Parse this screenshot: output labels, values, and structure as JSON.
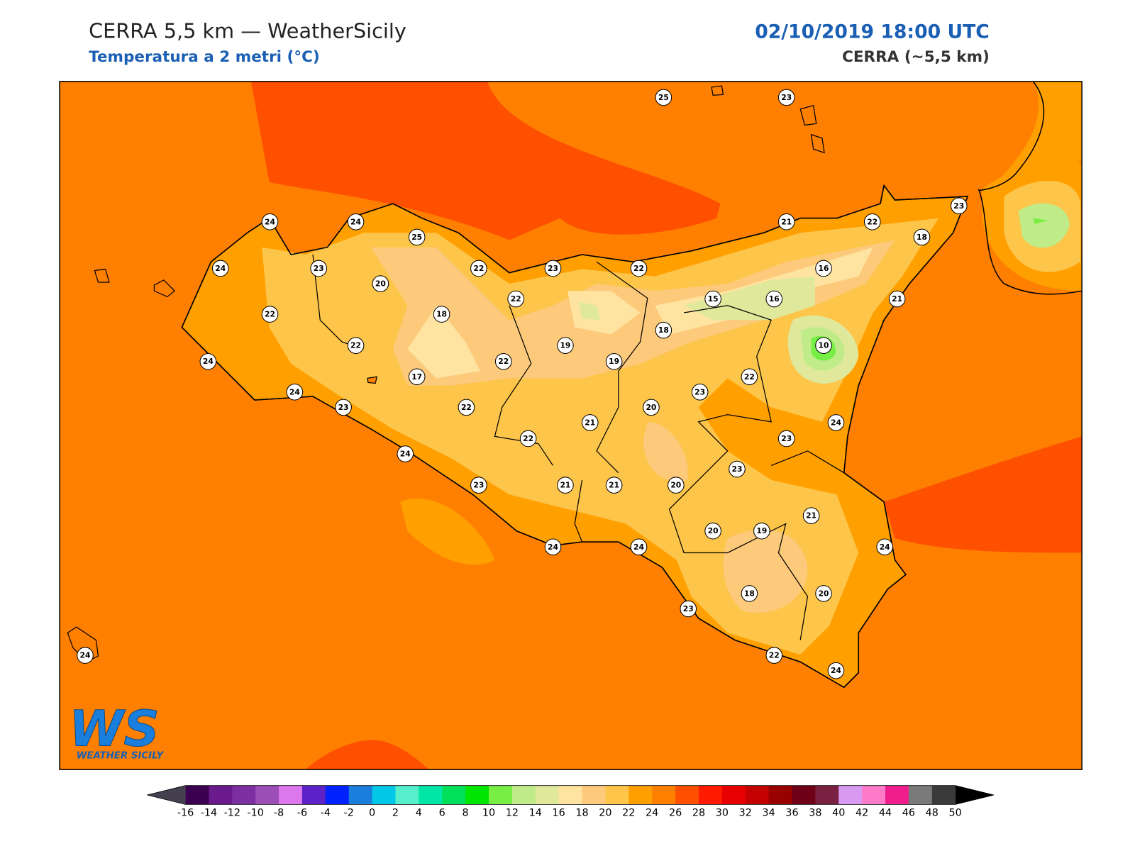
{
  "header": {
    "title": "CERRA 5,5 km — WeatherSicily",
    "subtitle": "Temperatura a 2 metri (°C)",
    "datetime": "02/10/2019 18:00 UTC",
    "model": "CERRA (~5,5 km)"
  },
  "logo": {
    "mark": "WS",
    "name": "WEATHER SICILY"
  },
  "stations": [
    25,
    23,
    24,
    24,
    25,
    21,
    22,
    23,
    18,
    24,
    23,
    22,
    23,
    22,
    16,
    20,
    22,
    15,
    16,
    21,
    22,
    18,
    18,
    22,
    19,
    10,
    24,
    22,
    19,
    17,
    22,
    24,
    23,
    23,
    22,
    20,
    21,
    24,
    22,
    23,
    24,
    23,
    23,
    21,
    21,
    20,
    21,
    20,
    19,
    24,
    24,
    24,
    23,
    18,
    20,
    24,
    22,
    24
  ],
  "colorbar": {
    "ticks": [
      -16,
      -14,
      -12,
      -10,
      -8,
      -6,
      -4,
      -2,
      0,
      2,
      4,
      6,
      8,
      10,
      12,
      14,
      16,
      18,
      20,
      22,
      24,
      26,
      28,
      30,
      32,
      34,
      36,
      38,
      40,
      42,
      44,
      46,
      48,
      50
    ],
    "colors": [
      "#3c0050",
      "#6a1a8a",
      "#7b2fa0",
      "#9b4fb6",
      "#dd77ee",
      "#5c22c8",
      "#0022ff",
      "#1a7fdc",
      "#00c8e6",
      "#55efcc",
      "#00e6a6",
      "#00e05a",
      "#00e600",
      "#77ee44",
      "#bfec88",
      "#e0e89c",
      "#ffe3a0",
      "#fdc97a",
      "#fdc54a",
      "#ff9f00",
      "#ff8000",
      "#ff5000",
      "#ff1a00",
      "#e60000",
      "#c40000",
      "#990000",
      "#6e0018",
      "#7a2040",
      "#d89af0",
      "#ff7ac8",
      "#f01e8c",
      "#7a7a7a",
      "#3a3a3a"
    ],
    "under_color": "#444050",
    "over_color": "#000000"
  }
}
